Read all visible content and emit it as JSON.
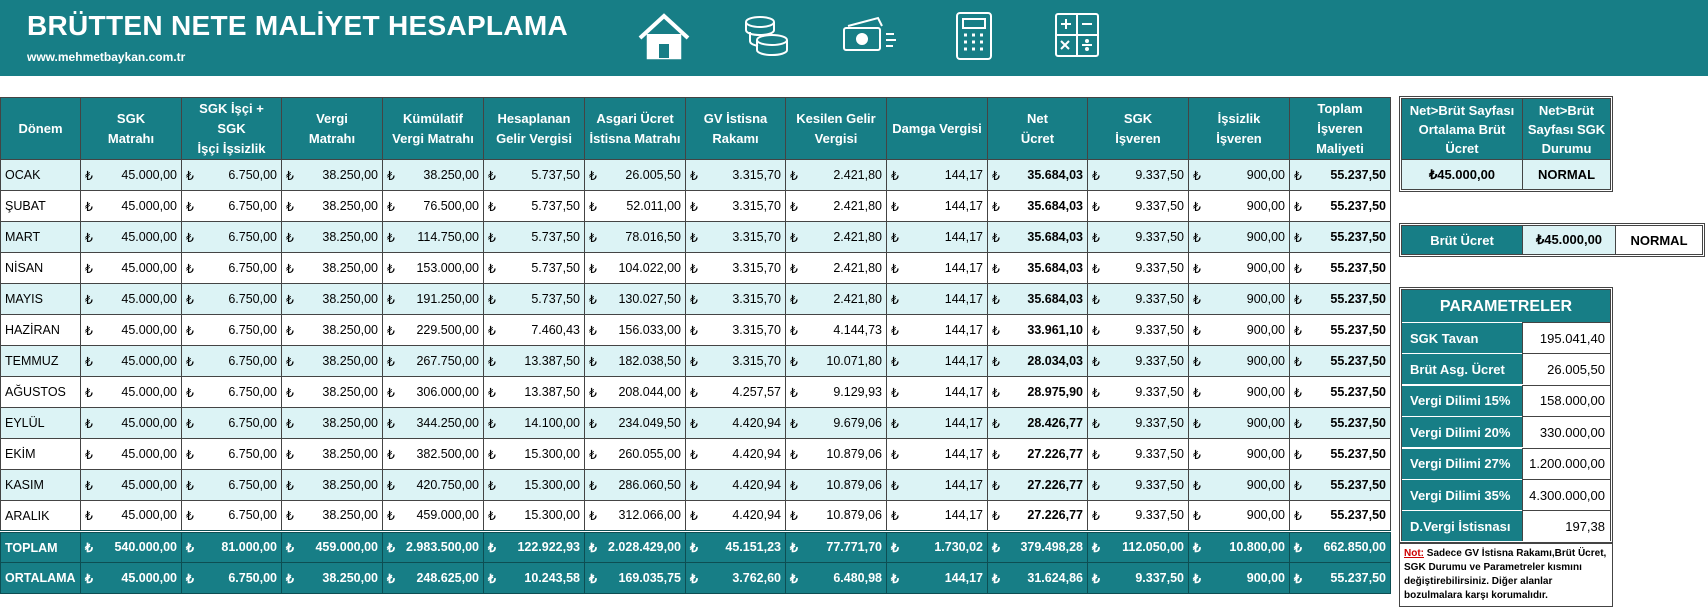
{
  "header": {
    "title": "BRÜTTEN NETE MALİYET HESAPLAMA",
    "url": "www.mehmetbaykan.com.tr"
  },
  "table": {
    "currency": "₺",
    "columns": [
      "Dönem",
      "SGK\nMatrahı",
      "SGK İşçi + SGK\nİşçi İşsizlik",
      "Vergi\nMatrahı",
      "Kümülatif\nVergi Matrahı",
      "Hesaplanan\nGelir Vergisi",
      "Asgari Ücret\nİstisna Matrahı",
      "GV İstisna\nRakamı",
      "Kesilen Gelir\nVergisi",
      "Damga Vergisi",
      "Net\nÜcret",
      "SGK\nİşveren",
      "İşsizlik\nİşveren",
      "Toplam\nİşveren\nMaliyeti"
    ],
    "rows": [
      {
        "label": "OCAK",
        "cells": [
          "45.000,00",
          "6.750,00",
          "38.250,00",
          "38.250,00",
          "5.737,50",
          "26.005,50",
          "3.315,70",
          "2.421,80",
          "144,17",
          "35.684,03",
          "9.337,50",
          "900,00",
          "55.237,50"
        ]
      },
      {
        "label": "ŞUBAT",
        "cells": [
          "45.000,00",
          "6.750,00",
          "38.250,00",
          "76.500,00",
          "5.737,50",
          "52.011,00",
          "3.315,70",
          "2.421,80",
          "144,17",
          "35.684,03",
          "9.337,50",
          "900,00",
          "55.237,50"
        ]
      },
      {
        "label": "MART",
        "cells": [
          "45.000,00",
          "6.750,00",
          "38.250,00",
          "114.750,00",
          "5.737,50",
          "78.016,50",
          "3.315,70",
          "2.421,80",
          "144,17",
          "35.684,03",
          "9.337,50",
          "900,00",
          "55.237,50"
        ]
      },
      {
        "label": "NİSAN",
        "cells": [
          "45.000,00",
          "6.750,00",
          "38.250,00",
          "153.000,00",
          "5.737,50",
          "104.022,00",
          "3.315,70",
          "2.421,80",
          "144,17",
          "35.684,03",
          "9.337,50",
          "900,00",
          "55.237,50"
        ]
      },
      {
        "label": "MAYIS",
        "cells": [
          "45.000,00",
          "6.750,00",
          "38.250,00",
          "191.250,00",
          "5.737,50",
          "130.027,50",
          "3.315,70",
          "2.421,80",
          "144,17",
          "35.684,03",
          "9.337,50",
          "900,00",
          "55.237,50"
        ]
      },
      {
        "label": "HAZİRAN",
        "cells": [
          "45.000,00",
          "6.750,00",
          "38.250,00",
          "229.500,00",
          "7.460,43",
          "156.033,00",
          "3.315,70",
          "4.144,73",
          "144,17",
          "33.961,10",
          "9.337,50",
          "900,00",
          "55.237,50"
        ]
      },
      {
        "label": "TEMMUZ",
        "cells": [
          "45.000,00",
          "6.750,00",
          "38.250,00",
          "267.750,00",
          "13.387,50",
          "182.038,50",
          "3.315,70",
          "10.071,80",
          "144,17",
          "28.034,03",
          "9.337,50",
          "900,00",
          "55.237,50"
        ]
      },
      {
        "label": "AĞUSTOS",
        "cells": [
          "45.000,00",
          "6.750,00",
          "38.250,00",
          "306.000,00",
          "13.387,50",
          "208.044,00",
          "4.257,57",
          "9.129,93",
          "144,17",
          "28.975,90",
          "9.337,50",
          "900,00",
          "55.237,50"
        ]
      },
      {
        "label": "EYLÜL",
        "cells": [
          "45.000,00",
          "6.750,00",
          "38.250,00",
          "344.250,00",
          "14.100,00",
          "234.049,50",
          "4.420,94",
          "9.679,06",
          "144,17",
          "28.426,77",
          "9.337,50",
          "900,00",
          "55.237,50"
        ]
      },
      {
        "label": "EKİM",
        "cells": [
          "45.000,00",
          "6.750,00",
          "38.250,00",
          "382.500,00",
          "15.300,00",
          "260.055,00",
          "4.420,94",
          "10.879,06",
          "144,17",
          "27.226,77",
          "9.337,50",
          "900,00",
          "55.237,50"
        ]
      },
      {
        "label": "KASIM",
        "cells": [
          "45.000,00",
          "6.750,00",
          "38.250,00",
          "420.750,00",
          "15.300,00",
          "286.060,50",
          "4.420,94",
          "10.879,06",
          "144,17",
          "27.226,77",
          "9.337,50",
          "900,00",
          "55.237,50"
        ]
      },
      {
        "label": "ARALIK",
        "cells": [
          "45.000,00",
          "6.750,00",
          "38.250,00",
          "459.000,00",
          "15.300,00",
          "312.066,00",
          "4.420,94",
          "10.879,06",
          "144,17",
          "27.226,77",
          "9.337,50",
          "900,00",
          "55.237,50"
        ]
      }
    ],
    "totals": [
      {
        "label": "TOPLAM",
        "cells": [
          "540.000,00",
          "81.000,00",
          "459.000,00",
          "2.983.500,00",
          "122.922,93",
          "2.028.429,00",
          "45.151,23",
          "77.771,70",
          "1.730,02",
          "379.498,28",
          "112.050,00",
          "10.800,00",
          "662.850,00"
        ]
      },
      {
        "label": "ORTALAMA",
        "cells": [
          "45.000,00",
          "6.750,00",
          "38.250,00",
          "248.625,00",
          "10.243,58",
          "169.035,75",
          "3.762,60",
          "6.480,98",
          "144,17",
          "31.624,86",
          "9.337,50",
          "900,00",
          "55.237,50"
        ]
      }
    ]
  },
  "summary": {
    "headers": [
      "Net>Brüt Sayfası Ortalama Brüt Ücret",
      "Net>Brüt Sayfası SGK Durumu"
    ],
    "values": [
      "₺45.000,00",
      "NORMAL"
    ]
  },
  "gross": {
    "label": "Brüt Ücret",
    "value": "₺45.000,00",
    "status": "NORMAL"
  },
  "parameters": {
    "title": "PARAMETRELER",
    "rows": [
      [
        "SGK Tavan",
        "195.041,40"
      ],
      [
        "Brüt Asg. Ücret",
        "26.005,50"
      ],
      [
        "Vergi Dilimi 15%",
        "158.000,00"
      ],
      [
        "Vergi Dilimi 20%",
        "330.000,00"
      ],
      [
        "Vergi Dilimi 27%",
        "1.200.000,00"
      ],
      [
        "Vergi Dilimi 35%",
        "4.300.000,00"
      ],
      [
        "D.Vergi İstisnası",
        "197,38"
      ]
    ]
  },
  "note": {
    "label": "Not:",
    "text": "Sadece GV İstisna Rakamı,Brüt Ücret, SGK Durumu ve Parametreler kısmını değiştirebilirsiniz. Diğer alanlar bozulmalara karşı korumalıdır."
  }
}
